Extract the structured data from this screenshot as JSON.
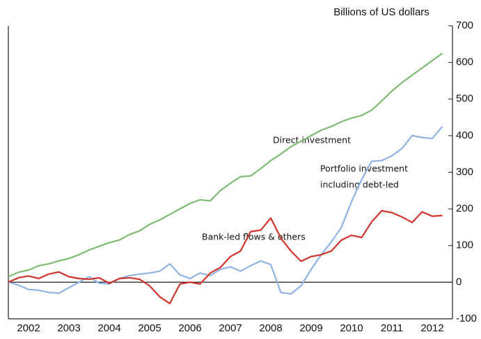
{
  "chart_data": {
    "type": "line",
    "axis_title": "Billions of US dollars",
    "annotations": [
      "Direct investment",
      "Portfolio investment",
      "including debt-led",
      "Bank-led flows & others"
    ],
    "x": [
      2002,
      2002.25,
      2002.5,
      2002.75,
      2003,
      2003.25,
      2003.5,
      2003.75,
      2004,
      2004.25,
      2004.5,
      2004.75,
      2005,
      2005.25,
      2005.5,
      2005.75,
      2006,
      2006.25,
      2006.5,
      2006.75,
      2007,
      2007.25,
      2007.5,
      2007.75,
      2008,
      2008.25,
      2008.5,
      2008.75,
      2009,
      2009.25,
      2009.5,
      2009.75,
      2010,
      2010.25,
      2010.5,
      2010.75,
      2011,
      2011.25,
      2011.5,
      2011.75,
      2012,
      2012.25,
      2012.5,
      2012.75
    ],
    "series": [
      {
        "name": "Direct investment",
        "color": "#7dbb72",
        "values": [
          15,
          27,
          33,
          45,
          50,
          58,
          65,
          75,
          88,
          98,
          108,
          115,
          130,
          140,
          158,
          170,
          185,
          200,
          215,
          225,
          222,
          250,
          270,
          288,
          290,
          310,
          332,
          350,
          370,
          385,
          400,
          415,
          425,
          438,
          448,
          455,
          470,
          495,
          522,
          545,
          565,
          585,
          605,
          625
        ]
      },
      {
        "name": "Portfolio investment including debt-led",
        "color": "#8fb3e3",
        "values": [
          0,
          -8,
          -20,
          -22,
          -28,
          -30,
          -15,
          0,
          15,
          -3,
          -5,
          10,
          18,
          22,
          25,
          30,
          50,
          20,
          10,
          25,
          18,
          35,
          42,
          30,
          45,
          58,
          48,
          -28,
          -32,
          -10,
          35,
          75,
          110,
          150,
          220,
          280,
          330,
          332,
          345,
          365,
          400,
          395,
          392,
          425
        ]
      },
      {
        "name": "Bank-led flows & others",
        "color": "#d0332b",
        "values": [
          0,
          12,
          17,
          10,
          22,
          28,
          15,
          10,
          8,
          12,
          -3,
          10,
          12,
          8,
          -10,
          -40,
          -58,
          -5,
          0,
          -5,
          25,
          40,
          70,
          85,
          138,
          142,
          175,
          120,
          85,
          57,
          70,
          75,
          85,
          115,
          128,
          122,
          165,
          195,
          190,
          178,
          163,
          192,
          180,
          182
        ]
      }
    ],
    "xlim": [
      2002,
      2013
    ],
    "xticks": [
      {
        "value": 2002.5,
        "label": "2002"
      },
      {
        "value": 2003.5,
        "label": "2003"
      },
      {
        "value": 2004.5,
        "label": "2004"
      },
      {
        "value": 2005.5,
        "label": "2005"
      },
      {
        "value": 2006.5,
        "label": "2006"
      },
      {
        "value": 2007.5,
        "label": "2007"
      },
      {
        "value": 2008.5,
        "label": "2008"
      },
      {
        "value": 2009.5,
        "label": "2009"
      },
      {
        "value": 2010.5,
        "label": "2010"
      },
      {
        "value": 2011.5,
        "label": "2011"
      },
      {
        "value": 2012.5,
        "label": "2012"
      }
    ],
    "ylim": [
      -100,
      700
    ],
    "yticks": [
      -100,
      0,
      100,
      200,
      300,
      400,
      500,
      600,
      700
    ],
    "y_axis_side": "right",
    "grid": false
  }
}
